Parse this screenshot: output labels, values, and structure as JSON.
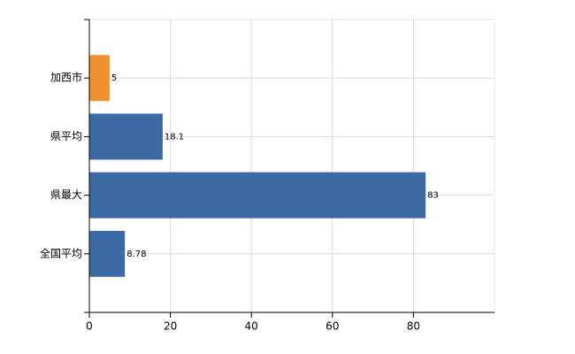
{
  "chart_data": {
    "type": "bar",
    "orientation": "horizontal",
    "categories": [
      "加西市",
      "県平均",
      "県最大",
      "全国平均"
    ],
    "values": [
      5,
      18.1,
      83,
      8.78
    ],
    "colors": [
      "#f0922e",
      "#3a69a4",
      "#3a69a4",
      "#3a69a4"
    ],
    "xlim": [
      0,
      100
    ],
    "xticks": [
      0,
      20,
      40,
      60,
      80
    ],
    "grid": true
  }
}
